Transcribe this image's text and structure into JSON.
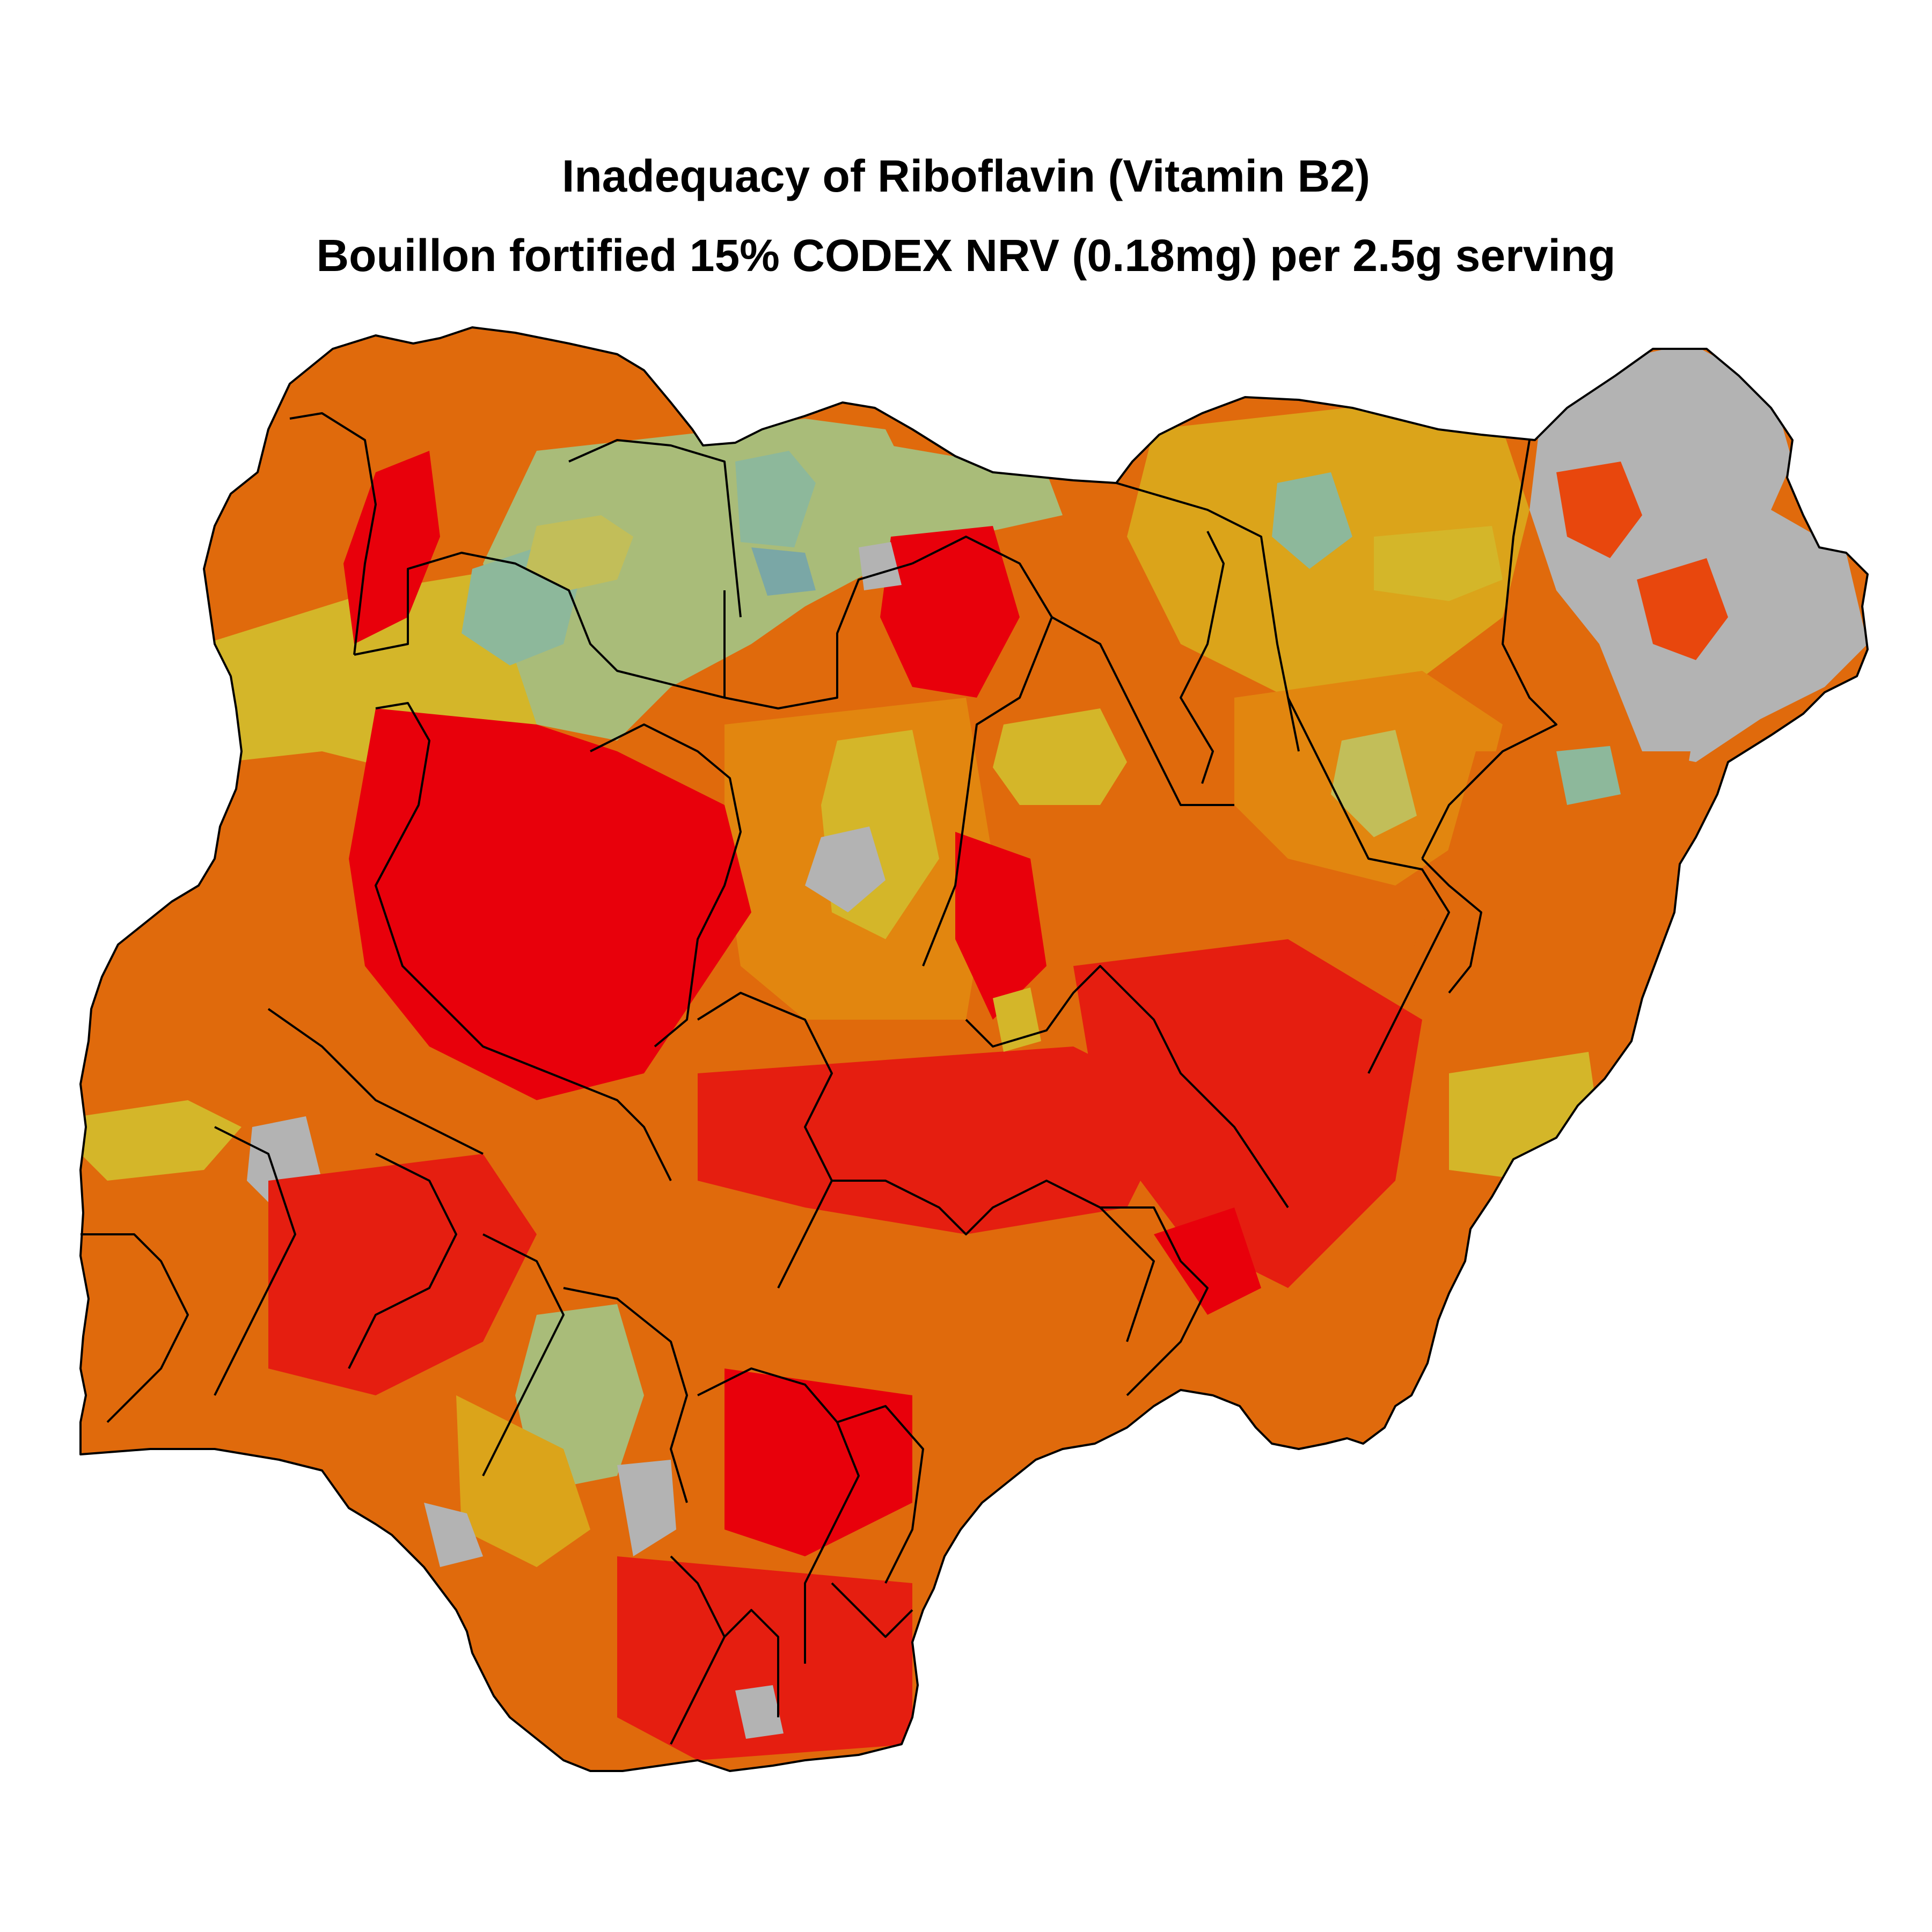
{
  "map": {
    "title": "Inadequacy of Riboflavin (Vitamin B2)",
    "subtitle": "Bouillon fortified 15% CODEX NRV (0.18mg) per 2.5g serving"
  },
  "colors": {
    "very_high": "#e8000b",
    "high": "#e51e10",
    "mid_high": "#e8470d",
    "mid": "#e06a0c",
    "orange": "#e2860f",
    "amber": "#dba41a",
    "yellow": "#d4b629",
    "olive": "#c2be59",
    "sage": "#a9bc79",
    "green": "#8db89b",
    "teal": "#7aa7a6",
    "no_data": "#b3b3b3",
    "boundary": "#000000"
  }
}
